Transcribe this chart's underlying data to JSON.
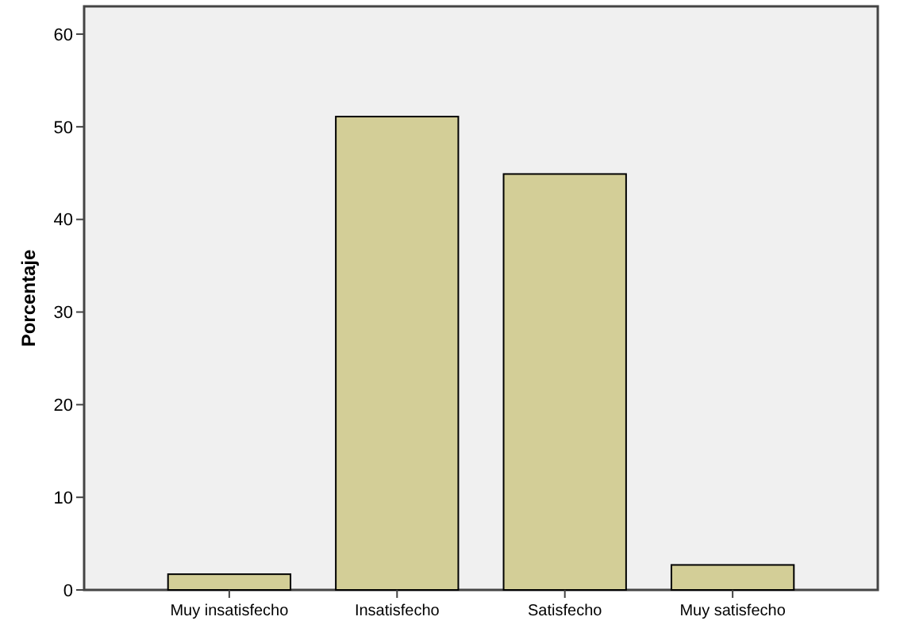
{
  "chart_data": {
    "type": "bar",
    "ylabel": "Porcentaje",
    "categories": [
      "Muy insatisfecho",
      "Insatisfecho",
      "Satisfecho",
      "Muy satisfecho"
    ],
    "values": [
      1.7,
      51.1,
      44.9,
      2.7
    ],
    "color": "#d3ce97",
    "ylim": [
      0,
      63
    ],
    "yticks": [
      0,
      10,
      20,
      30,
      40,
      50,
      60
    ],
    "grid": false
  }
}
